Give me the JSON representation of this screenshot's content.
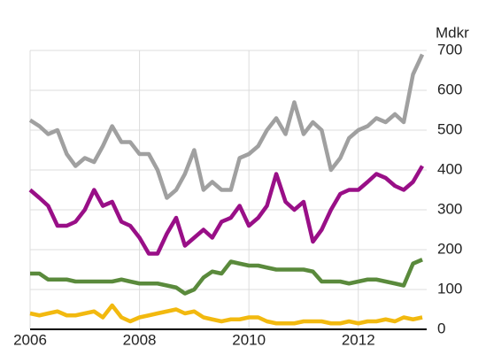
{
  "chart_data": {
    "type": "line",
    "y_axis_label": "Mdkr",
    "x": [
      2006.0,
      2006.17,
      2006.33,
      2006.5,
      2006.67,
      2006.83,
      2007.0,
      2007.17,
      2007.33,
      2007.5,
      2007.67,
      2007.83,
      2008.0,
      2008.17,
      2008.33,
      2008.5,
      2008.67,
      2008.83,
      2009.0,
      2009.17,
      2009.33,
      2009.5,
      2009.67,
      2009.83,
      2010.0,
      2010.17,
      2010.33,
      2010.5,
      2010.67,
      2010.83,
      2011.0,
      2011.17,
      2011.33,
      2011.5,
      2011.67,
      2011.83,
      2012.0,
      2012.17,
      2012.33,
      2012.5,
      2012.67,
      2012.83,
      2013.0,
      2013.17
    ],
    "series": [
      {
        "color": "#a0a0a0",
        "values": [
          525,
          510,
          490,
          500,
          440,
          410,
          430,
          420,
          460,
          510,
          470,
          470,
          440,
          440,
          400,
          330,
          350,
          390,
          450,
          350,
          370,
          350,
          350,
          430,
          440,
          460,
          500,
          530,
          490,
          570,
          490,
          520,
          500,
          400,
          430,
          480,
          500,
          510,
          530,
          520,
          540,
          520,
          640,
          690
        ]
      },
      {
        "color": "#990f87",
        "values": [
          350,
          330,
          310,
          260,
          260,
          270,
          300,
          350,
          310,
          320,
          270,
          260,
          230,
          190,
          190,
          240,
          280,
          210,
          230,
          250,
          230,
          270,
          280,
          310,
          260,
          280,
          310,
          390,
          320,
          300,
          320,
          220,
          250,
          300,
          340,
          350,
          350,
          370,
          390,
          380,
          360,
          350,
          370,
          410
        ]
      },
      {
        "color": "#5a8a3c",
        "values": [
          140,
          140,
          125,
          125,
          125,
          120,
          120,
          120,
          120,
          120,
          125,
          120,
          115,
          115,
          115,
          110,
          105,
          90,
          100,
          130,
          145,
          140,
          170,
          165,
          160,
          160,
          155,
          150,
          150,
          150,
          150,
          145,
          120,
          120,
          120,
          115,
          120,
          125,
          125,
          120,
          115,
          110,
          165,
          175
        ]
      },
      {
        "color": "#f2b90f",
        "values": [
          40,
          35,
          40,
          45,
          35,
          35,
          40,
          45,
          30,
          60,
          30,
          20,
          30,
          35,
          40,
          45,
          50,
          40,
          45,
          30,
          25,
          20,
          25,
          25,
          30,
          30,
          20,
          15,
          15,
          15,
          20,
          20,
          20,
          15,
          15,
          20,
          15,
          20,
          20,
          25,
          20,
          30,
          25,
          30
        ]
      }
    ],
    "xlim": [
      2006,
      2013.25
    ],
    "xticks": [
      2006,
      2008,
      2010,
      2012
    ],
    "ylim": [
      0,
      700
    ],
    "yticks": [
      0,
      100,
      200,
      300,
      400,
      500,
      600,
      700
    ],
    "grid": true
  }
}
